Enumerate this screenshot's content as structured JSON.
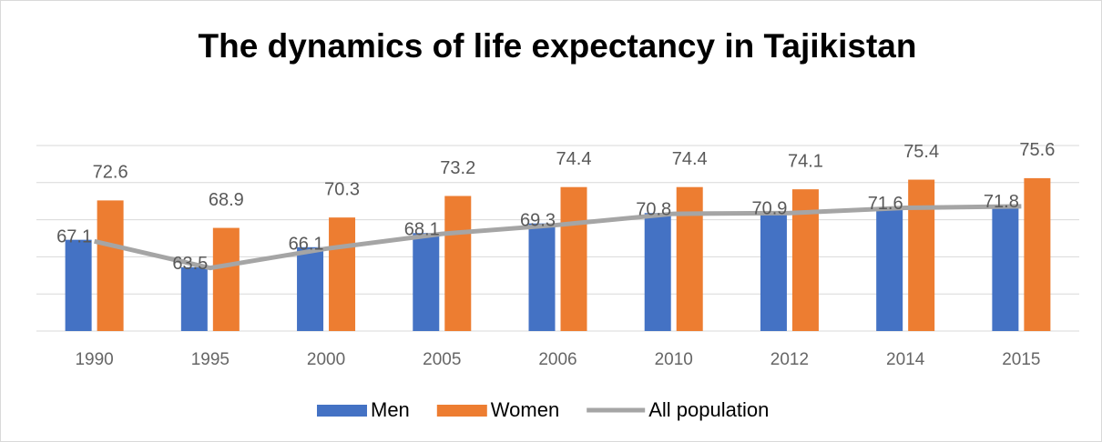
{
  "chart_data": {
    "type": "bar_line",
    "title": "The dynamics of life expectancy in Tajikistan",
    "categories": [
      "1990",
      "1995",
      "2000",
      "2005",
      "2006",
      "2010",
      "2012",
      "2014",
      "2015"
    ],
    "series": [
      {
        "name": "Men",
        "type": "bar",
        "color": "#4472c4",
        "values": [
          67.3,
          63.6,
          66.3,
          68.2,
          69.5,
          70.9,
          71.1,
          71.7,
          71.9
        ]
      },
      {
        "name": "Women",
        "type": "bar",
        "color": "#ed7d31",
        "values": [
          72.6,
          68.9,
          70.3,
          73.2,
          74.4,
          74.4,
          74.1,
          75.4,
          75.6
        ]
      },
      {
        "name": "All population",
        "type": "line",
        "color": "#a5a5a5",
        "values": [
          67.1,
          63.5,
          66.1,
          68.1,
          69.3,
          70.8,
          70.9,
          71.6,
          71.8
        ]
      }
    ],
    "ylim": [
      55,
      80
    ],
    "yticks": [
      55,
      60,
      65,
      70,
      75,
      80
    ],
    "grid": true,
    "legend": "bottom"
  }
}
